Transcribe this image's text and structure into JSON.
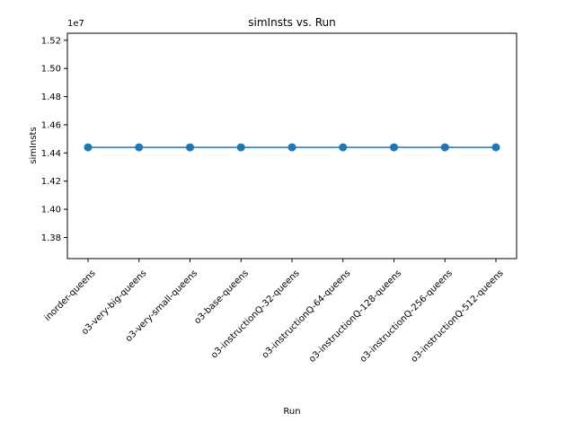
{
  "chart_data": {
    "type": "line",
    "title": "simInsts vs. Run",
    "xlabel": "Run",
    "ylabel": "simInsts",
    "y_offset_text": "1e7",
    "categories": [
      "inorder-queens",
      "o3-very-big-queens",
      "o3-very-small-queens",
      "o3-base-queens",
      "o3-instructionQ-32-queens",
      "o3-instructionQ-64-queens",
      "o3-instructionQ-128-queens",
      "o3-instructionQ-256-queens",
      "o3-instructionQ-512-queens"
    ],
    "series": [
      {
        "values": [
          14440000,
          14440000,
          14440000,
          14440000,
          14440000,
          14440000,
          14440000,
          14440000,
          14440000
        ]
      }
    ],
    "ylim": [
      13650000,
      15250000
    ],
    "yticks": [
      13800000,
      14000000,
      14200000,
      14400000,
      14600000,
      14800000,
      15000000,
      15200000
    ],
    "ytick_labels": [
      "1.38",
      "1.40",
      "1.42",
      "1.44",
      "1.46",
      "1.48",
      "1.50",
      "1.52"
    ],
    "grid": false,
    "line_color": "#1f77b4"
  }
}
